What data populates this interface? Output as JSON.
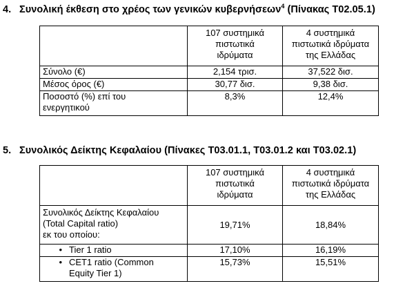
{
  "section4": {
    "number": "4.",
    "title": "Συνολική έκθεση στο χρέος των γενικών κυβερνήσεων",
    "footnote": "4",
    "table_ref": " (Πίνακας T02.05.1)",
    "table": {
      "col1_header": [
        "107 συστημικά",
        "πιστωτικά",
        "ιδρύματα"
      ],
      "col2_header": [
        "4 συστημικά",
        "πιστωτικά ιδρύματα",
        "της Ελλάδας"
      ],
      "rows": [
        {
          "label": [
            "Σύνολο (€)"
          ],
          "v1": "2,154 τρισ.",
          "v2": "37,522 δισ."
        },
        {
          "label": [
            "Μέσος όρος (€)"
          ],
          "v1": "30,77 δισ.",
          "v2": "9,38 δισ."
        },
        {
          "label": [
            "Ποσοστό (%) επί του",
            "ενεργητικού"
          ],
          "v1": "8,3%",
          "v2": "12,4%"
        }
      ]
    }
  },
  "section5": {
    "number": "5.",
    "title": "Συνολικός Δείκτης Κεφαλαίου (Πίνακες T03.01.1, T03.01.2 και T03.02.1)",
    "table": {
      "col1_header": [
        "107 συστημικά",
        "πιστωτικά",
        "ιδρύματα"
      ],
      "col2_header": [
        "4 συστημικά",
        "πιστωτικά ιδρύματα",
        "της Ελλάδας"
      ],
      "row_total": {
        "label": [
          "Συνολικός Δείκτης Κεφαλαίου",
          "(Total Capital ratio)",
          "εκ του οποίου:"
        ],
        "v1": "19,71%",
        "v2": "18,84%"
      },
      "row_tier1": {
        "bullet": "•",
        "label": "Tier 1 ratio",
        "v1": "17,10%",
        "v2": "16,19%"
      },
      "row_cet1": {
        "bullet": "•",
        "label": [
          "CET1 ratio (Common",
          "Equity Tier 1)"
        ],
        "v1": "15,73%",
        "v2": "15,51%"
      }
    }
  }
}
